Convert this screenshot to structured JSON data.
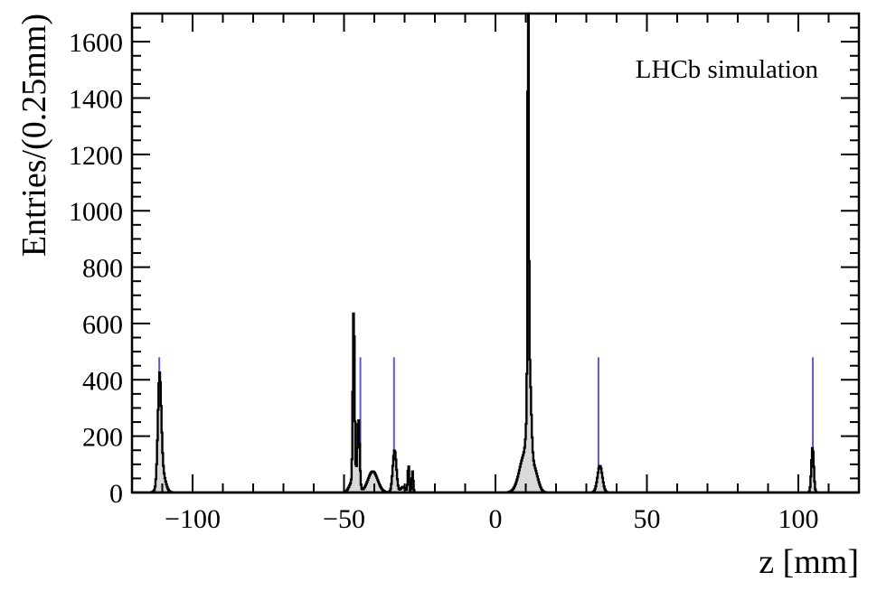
{
  "chart_data": {
    "type": "histogram",
    "annotation": "LHCb simulation",
    "xlabel": "z [mm]",
    "ylabel": "Entries/(0.25mm)",
    "xlim": [
      -120,
      120
    ],
    "ylim": [
      0,
      1700
    ],
    "x_ticks": [
      -100,
      -50,
      0,
      50,
      100
    ],
    "x_tick_labels": [
      "−100",
      "−50",
      "0",
      "50",
      "100"
    ],
    "y_ticks": [
      0,
      200,
      400,
      600,
      800,
      1000,
      1200,
      1400,
      1600
    ],
    "y_tick_labels": [
      "0",
      "200",
      "400",
      "600",
      "800",
      "1000",
      "1200",
      "1400",
      "1600"
    ],
    "bin_width": 0.25,
    "grid": false,
    "series": [
      {
        "style": "filled-histogram",
        "line_color": "#000000",
        "fill_color": "#d9d9d9",
        "peaks": [
          {
            "center": -110.9,
            "sigma": 0.55,
            "amplitude": 360
          },
          {
            "center": -110.2,
            "sigma": 1.1,
            "amplitude": 80
          },
          {
            "center": -46.8,
            "sigma": 0.28,
            "amplitude": 600
          },
          {
            "center": -46.3,
            "sigma": 1.0,
            "amplitude": 60
          },
          {
            "center": -45.2,
            "sigma": 0.35,
            "amplitude": 230
          },
          {
            "center": -48.0,
            "sigma": 0.8,
            "amplitude": 15
          },
          {
            "center": -40.5,
            "sigma": 1.6,
            "amplitude": 75
          },
          {
            "center": -33.3,
            "sigma": 0.6,
            "amplitude": 150
          },
          {
            "center": -30.5,
            "sigma": 0.8,
            "amplitude": 20
          },
          {
            "center": -28.7,
            "sigma": 0.25,
            "amplitude": 95
          },
          {
            "center": -27.4,
            "sigma": 0.25,
            "amplitude": 75
          },
          {
            "center": 10.8,
            "sigma": 0.18,
            "amplitude": 1620
          },
          {
            "center": 11.1,
            "sigma": 0.6,
            "amplitude": 380
          },
          {
            "center": 9.8,
            "sigma": 1.8,
            "amplitude": 140
          },
          {
            "center": 13.0,
            "sigma": 1.2,
            "amplitude": 60
          },
          {
            "center": 34.5,
            "sigma": 0.8,
            "amplitude": 95
          },
          {
            "center": 104.7,
            "sigma": 0.4,
            "amplitude": 160
          }
        ]
      },
      {
        "style": "vertical-lines",
        "color": "#5a5ad0",
        "positions": [
          -111.0,
          -46.6,
          -44.6,
          -33.5,
          10.9,
          34.0,
          104.8
        ],
        "height": 480
      }
    ]
  }
}
